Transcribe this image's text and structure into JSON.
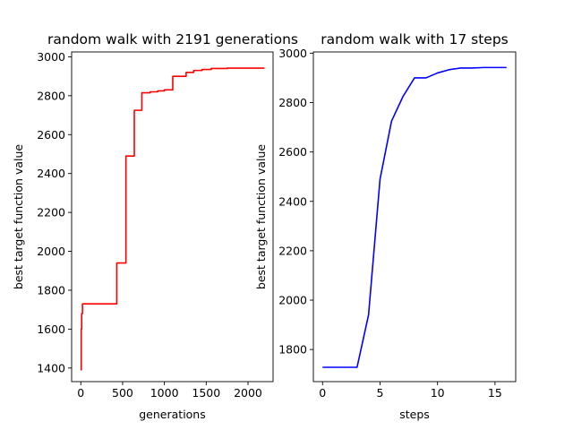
{
  "chart_data": [
    {
      "type": "line",
      "title": "random walk with 2191 generations",
      "xlabel": "generations",
      "ylabel": "best target function value",
      "xlim": [
        -110,
        2300
      ],
      "ylim": [
        1330,
        3025
      ],
      "xticks": [
        0,
        500,
        1000,
        1500,
        2000
      ],
      "yticks": [
        1400,
        1600,
        1800,
        2000,
        2200,
        2400,
        2600,
        2800,
        3000
      ],
      "color": "#ff0000",
      "step": true,
      "x": [
        0,
        5,
        10,
        20,
        430,
        540,
        640,
        730,
        830,
        920,
        1000,
        1100,
        1260,
        1350,
        1450,
        1560,
        1650,
        1750,
        2191
      ],
      "y": [
        1390,
        1600,
        1680,
        1730,
        1940,
        2490,
        2725,
        2815,
        2820,
        2825,
        2830,
        2900,
        2920,
        2930,
        2935,
        2940,
        2940,
        2942,
        2945
      ]
    },
    {
      "type": "line",
      "title": "random walk with 17 steps",
      "xlabel": "steps",
      "ylabel": "best target function value",
      "xlim": [
        -0.8,
        16.8
      ],
      "ylim": [
        1670,
        3005
      ],
      "xticks": [
        0,
        5,
        10,
        15
      ],
      "yticks": [
        1800,
        2000,
        2200,
        2400,
        2600,
        2800,
        3000
      ],
      "color": "#0000ff",
      "step": false,
      "x": [
        0,
        1,
        2,
        3,
        4,
        5,
        6,
        7,
        8,
        9,
        10,
        11,
        12,
        13,
        14,
        15,
        16
      ],
      "y": [
        1728,
        1728,
        1728,
        1728,
        1940,
        2490,
        2725,
        2825,
        2900,
        2900,
        2920,
        2933,
        2940,
        2940,
        2942,
        2942,
        2942
      ]
    }
  ]
}
